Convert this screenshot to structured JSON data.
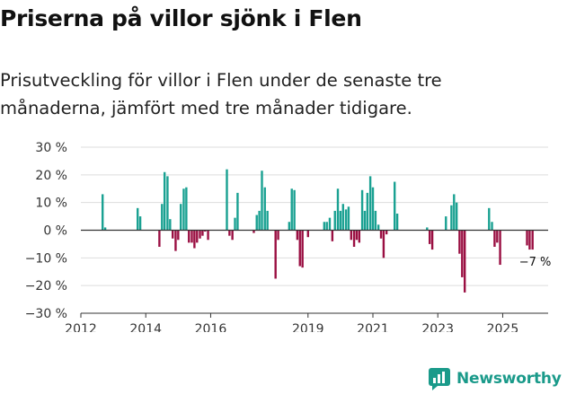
{
  "title": "Priserna på villor sjönk i Flen",
  "subtitle": "Prisutveckling för villor i Flen under de senaste tre månaderna, jämfört med tre månader tidigare.",
  "brand": {
    "name": "Newsworthy"
  },
  "colors": {
    "positive": "#1aa192",
    "negative": "#9a0f42",
    "axis": "#333333",
    "grid": "#dddddd",
    "brand": "#1a9a8a"
  },
  "chart_data": {
    "type": "bar",
    "title": "Priserna på villor sjönk i Flen",
    "xlabel": "",
    "ylabel": "",
    "ylim": [
      -30,
      30
    ],
    "y_ticks": [
      {
        "value": 30,
        "label": "30 %"
      },
      {
        "value": 20,
        "label": "20 %"
      },
      {
        "value": 10,
        "label": "10 %"
      },
      {
        "value": 0,
        "label": "0 %"
      },
      {
        "value": -10,
        "label": "−10 %"
      },
      {
        "value": -20,
        "label": "−20 %"
      },
      {
        "value": -30,
        "label": "−30 %"
      }
    ],
    "x_ticks": [
      {
        "value": 2012,
        "label": "2012"
      },
      {
        "value": 2014,
        "label": "2014"
      },
      {
        "value": 2016,
        "label": "2016"
      },
      {
        "value": 2019,
        "label": "2019"
      },
      {
        "value": 2021,
        "label": "2021"
      },
      {
        "value": 2023,
        "label": "2023"
      },
      {
        "value": 2025,
        "label": "2025"
      }
    ],
    "x_range": [
      2012,
      2026.4
    ],
    "annotation": {
      "text": "−7 %",
      "x": 2026.0,
      "y": -7
    },
    "series": [
      {
        "name": "Prisutveckling",
        "points": [
          {
            "x": 2012.67,
            "y": 13
          },
          {
            "x": 2012.75,
            "y": 1
          },
          {
            "x": 2013.75,
            "y": 8
          },
          {
            "x": 2013.83,
            "y": 5
          },
          {
            "x": 2014.42,
            "y": -6
          },
          {
            "x": 2014.5,
            "y": 9.5
          },
          {
            "x": 2014.58,
            "y": 21
          },
          {
            "x": 2014.67,
            "y": 19.5
          },
          {
            "x": 2014.75,
            "y": 4
          },
          {
            "x": 2014.83,
            "y": -3
          },
          {
            "x": 2014.92,
            "y": -7.5
          },
          {
            "x": 2015.0,
            "y": -3.5
          },
          {
            "x": 2015.08,
            "y": 9.5
          },
          {
            "x": 2015.17,
            "y": 15
          },
          {
            "x": 2015.25,
            "y": 15.5
          },
          {
            "x": 2015.33,
            "y": -4.5
          },
          {
            "x": 2015.42,
            "y": -4.5
          },
          {
            "x": 2015.5,
            "y": -6.5
          },
          {
            "x": 2015.58,
            "y": -4.5
          },
          {
            "x": 2015.67,
            "y": -3
          },
          {
            "x": 2015.75,
            "y": -2
          },
          {
            "x": 2015.83,
            "y": -0.5
          },
          {
            "x": 2015.92,
            "y": -3.5
          },
          {
            "x": 2016.5,
            "y": 22
          },
          {
            "x": 2016.58,
            "y": -2
          },
          {
            "x": 2016.67,
            "y": -3.5
          },
          {
            "x": 2016.75,
            "y": 4.5
          },
          {
            "x": 2016.83,
            "y": 13.5
          },
          {
            "x": 2017.33,
            "y": -1
          },
          {
            "x": 2017.42,
            "y": 5.5
          },
          {
            "x": 2017.5,
            "y": 7
          },
          {
            "x": 2017.58,
            "y": 21.5
          },
          {
            "x": 2017.67,
            "y": 15.5
          },
          {
            "x": 2017.75,
            "y": 7
          },
          {
            "x": 2018.0,
            "y": -17.5
          },
          {
            "x": 2018.08,
            "y": -3.5
          },
          {
            "x": 2018.42,
            "y": 3
          },
          {
            "x": 2018.5,
            "y": 15
          },
          {
            "x": 2018.58,
            "y": 14.5
          },
          {
            "x": 2018.67,
            "y": -3.5
          },
          {
            "x": 2018.75,
            "y": -13
          },
          {
            "x": 2018.83,
            "y": -13.5
          },
          {
            "x": 2019.0,
            "y": -2.5
          },
          {
            "x": 2019.5,
            "y": 3
          },
          {
            "x": 2019.58,
            "y": 3
          },
          {
            "x": 2019.67,
            "y": 4.5
          },
          {
            "x": 2019.75,
            "y": -4
          },
          {
            "x": 2019.83,
            "y": 7
          },
          {
            "x": 2019.92,
            "y": 15
          },
          {
            "x": 2020.0,
            "y": 7
          },
          {
            "x": 2020.08,
            "y": 9.5
          },
          {
            "x": 2020.17,
            "y": 7.5
          },
          {
            "x": 2020.25,
            "y": 8.5
          },
          {
            "x": 2020.33,
            "y": -3.5
          },
          {
            "x": 2020.42,
            "y": -6
          },
          {
            "x": 2020.5,
            "y": -3.5
          },
          {
            "x": 2020.58,
            "y": -4.5
          },
          {
            "x": 2020.67,
            "y": 14.5
          },
          {
            "x": 2020.75,
            "y": 7
          },
          {
            "x": 2020.83,
            "y": 13.5
          },
          {
            "x": 2020.92,
            "y": 19.5
          },
          {
            "x": 2021.0,
            "y": 15.5
          },
          {
            "x": 2021.08,
            "y": 7
          },
          {
            "x": 2021.17,
            "y": 2
          },
          {
            "x": 2021.25,
            "y": -3
          },
          {
            "x": 2021.33,
            "y": -10
          },
          {
            "x": 2021.42,
            "y": -1.5
          },
          {
            "x": 2021.67,
            "y": 17.5
          },
          {
            "x": 2021.75,
            "y": 6
          },
          {
            "x": 2022.67,
            "y": 1
          },
          {
            "x": 2022.75,
            "y": -5
          },
          {
            "x": 2022.83,
            "y": -7
          },
          {
            "x": 2023.25,
            "y": 5
          },
          {
            "x": 2023.42,
            "y": 9
          },
          {
            "x": 2023.5,
            "y": 13
          },
          {
            "x": 2023.58,
            "y": 10
          },
          {
            "x": 2023.67,
            "y": -8.5
          },
          {
            "x": 2023.75,
            "y": -17
          },
          {
            "x": 2023.83,
            "y": -22.5
          },
          {
            "x": 2024.58,
            "y": 8
          },
          {
            "x": 2024.67,
            "y": 3
          },
          {
            "x": 2024.75,
            "y": -6
          },
          {
            "x": 2024.83,
            "y": -4.5
          },
          {
            "x": 2024.92,
            "y": -12.5
          },
          {
            "x": 2025.75,
            "y": -5.5
          },
          {
            "x": 2025.83,
            "y": -7
          },
          {
            "x": 2025.92,
            "y": -7
          }
        ]
      }
    ]
  }
}
